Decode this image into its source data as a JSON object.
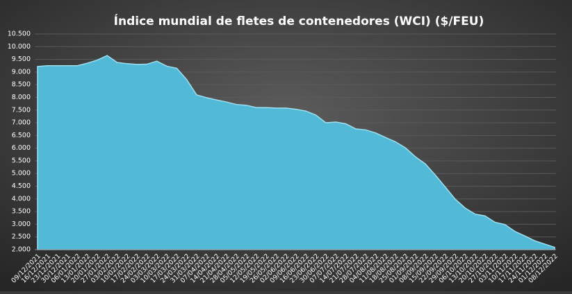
{
  "chart_data": {
    "type": "area",
    "title": "Índice mundial  de fletes de contenedores (WCI) ($/FEU)",
    "categories": [
      "09/12/2021",
      "16/12/2021",
      "23/12/2021",
      "30/12/2021",
      "06/01/2022",
      "13/01/2022",
      "20/01/2022",
      "27/01/2022",
      "03/02/2022",
      "10/02/2022",
      "17/02/2022",
      "24/02/2022",
      "03/03/2022",
      "10/03/2022",
      "17/03/2022",
      "24/03/2022",
      "31/03/2022",
      "07/04/2022",
      "14/04/2022",
      "21/04/2022",
      "28/04/2022",
      "05/05/2022",
      "12/05/2022",
      "19/05/2022",
      "26/05/2022",
      "02/06/2022",
      "09/06/2022",
      "16/06/2022",
      "23/06/2022",
      "30/06/2022",
      "07/07/2022",
      "14/07/2022",
      "21/07/2022",
      "28/07/2022",
      "04/08/2022",
      "11/08/2022",
      "18/08/2022",
      "25/08/2022",
      "01/09/2022",
      "08/09/2022",
      "15/09/2022",
      "22/09/2022",
      "29/09/2022",
      "06/10/2022",
      "13/10/2022",
      "20/10/2022",
      "27/10/2022",
      "03/11/2022",
      "10/11/2022",
      "17/11/2022",
      "24/11/2022",
      "01/12/2022",
      "08/12/2022"
    ],
    "values": [
      9220,
      9250,
      9250,
      9250,
      9250,
      9350,
      9470,
      9650,
      9380,
      9330,
      9300,
      9310,
      9430,
      9230,
      9150,
      8700,
      8100,
      7990,
      7900,
      7820,
      7720,
      7690,
      7600,
      7600,
      7580,
      7580,
      7530,
      7460,
      7300,
      7000,
      7030,
      6960,
      6760,
      6720,
      6600,
      6420,
      6250,
      6010,
      5660,
      5380,
      4940,
      4470,
      3990,
      3640,
      3400,
      3330,
      3080,
      2990,
      2720,
      2540,
      2350,
      2220,
      2090
    ],
    "color": "#52b9d6",
    "ylim": [
      2000,
      10500
    ],
    "yticks": [
      {
        "value": 2000,
        "label": "2.000"
      },
      {
        "value": 2500,
        "label": "2.500"
      },
      {
        "value": 3000,
        "label": "3.000"
      },
      {
        "value": 3500,
        "label": "3.500"
      },
      {
        "value": 4000,
        "label": "4.000"
      },
      {
        "value": 4500,
        "label": "4.500"
      },
      {
        "value": 5000,
        "label": "5.000"
      },
      {
        "value": 5500,
        "label": "5.500"
      },
      {
        "value": 6000,
        "label": "6.000"
      },
      {
        "value": 6500,
        "label": "6.500"
      },
      {
        "value": 7000,
        "label": "7.000"
      },
      {
        "value": 7500,
        "label": "7.500"
      },
      {
        "value": 8000,
        "label": "8.000"
      },
      {
        "value": 8500,
        "label": "8.500"
      },
      {
        "value": 9000,
        "label": "9.000"
      },
      {
        "value": 9500,
        "label": "9.500"
      },
      {
        "value": 10000,
        "label": "10.000"
      },
      {
        "value": 10500,
        "label": "10.500"
      }
    ],
    "grid": true
  }
}
